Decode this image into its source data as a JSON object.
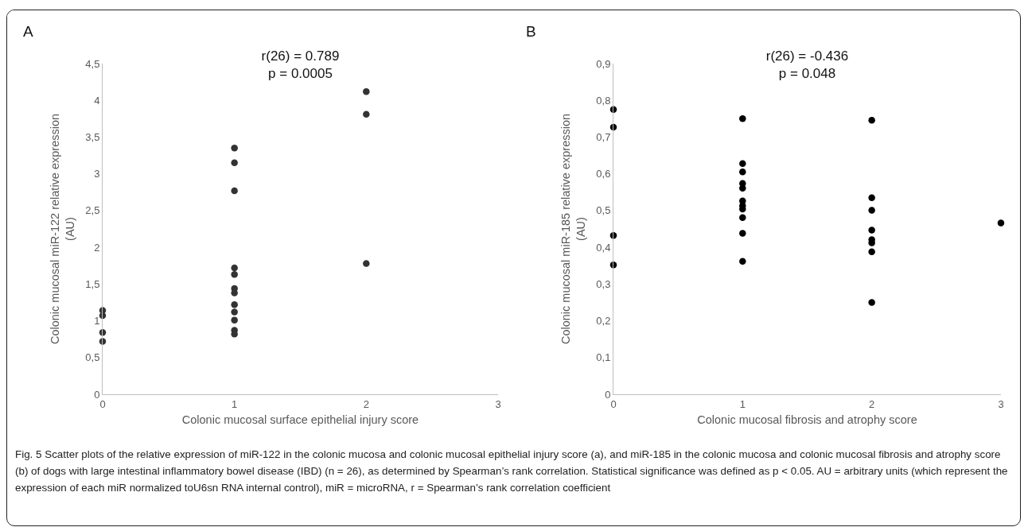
{
  "chart_data": [
    {
      "type": "scatter",
      "title": "r(26) = 0.789",
      "subtitle": "p = 0.0005",
      "xlabel": "Colonic mucosal surface epithelial injury score",
      "ylabel": "Colonic mucosal miR-122 relative expression (AU)",
      "annotations": [
        "A"
      ],
      "x": [
        0,
        0,
        0,
        0,
        1,
        1,
        1,
        1,
        1,
        1,
        1,
        1,
        1,
        1,
        1,
        1,
        2,
        2,
        2
      ],
      "values": [
        1.14,
        1.07,
        0.84,
        0.72,
        3.35,
        3.15,
        2.77,
        1.72,
        1.63,
        1.44,
        1.38,
        1.22,
        1.12,
        1.01,
        0.87,
        0.82,
        4.12,
        3.81,
        1.78
      ],
      "color": "#333333",
      "marker": "circle",
      "grid": false,
      "legend": false,
      "xlim": [
        0,
        3
      ],
      "xticks": [
        0,
        1,
        2,
        3
      ],
      "ylim": [
        0,
        4.5
      ],
      "yticks": [
        0,
        {
          "value": 0.5,
          "label": "0,5"
        },
        1,
        {
          "value": 1.5,
          "label": "1,5"
        },
        2,
        {
          "value": 2.5,
          "label": "2,5"
        },
        3,
        {
          "value": 3.5,
          "label": "3,5"
        },
        4,
        {
          "value": 4.5,
          "label": "4,5"
        }
      ]
    },
    {
      "type": "scatter",
      "title": "r(26) = -0.436",
      "subtitle": "p = 0.048",
      "xlabel": "Colonic mucosal fibrosis and atrophy score",
      "ylabel": "Colonic mucosal miR-185 relative expression (AU)",
      "annotations": [
        "B",
        "Fig. 5 Scatter plots of the relative expression of miR-122 in the colonic mucosa and colonic mucosal epithelial injury score (a), and miR-185 in the colonic mucosa and colonic mucosal fibrosis and atrophy score (b) of dogs with large intestinal inflammatory bowel disease (IBD) (n = 26), as determined by Spearman’s rank correlation. Statistical significance was defined as p < 0.05. AU = arbitrary units (which represent the expression of each miR normalized toU6sn RNA internal control), miR = microRNA, r = Spearman’s rank correlation coefficient"
      ],
      "x": [
        0,
        0,
        0,
        0,
        1,
        1,
        1,
        1,
        1,
        1,
        1,
        1,
        1,
        1,
        1,
        2,
        2,
        2,
        2,
        2,
        2,
        2,
        2,
        3
      ],
      "values": [
        0.775,
        0.727,
        0.432,
        0.352,
        0.75,
        0.628,
        0.605,
        0.574,
        0.561,
        0.526,
        0.513,
        0.504,
        0.481,
        0.438,
        0.362,
        0.746,
        0.535,
        0.501,
        0.447,
        0.421,
        0.412,
        0.388,
        0.25,
        0.466
      ],
      "color": "#000000",
      "marker": "circle",
      "grid": false,
      "legend": false,
      "xlim": [
        0,
        3
      ],
      "xticks": [
        0,
        1,
        2,
        3
      ],
      "ylim": [
        0,
        0.9
      ],
      "yticks": [
        0,
        {
          "value": 0.1,
          "label": "0,1"
        },
        {
          "value": 0.2,
          "label": "0,2"
        },
        {
          "value": 0.3,
          "label": "0,3"
        },
        {
          "value": 0.4,
          "label": "0,4"
        },
        {
          "value": 0.5,
          "label": "0,5"
        },
        {
          "value": 0.6,
          "label": "0,6"
        },
        {
          "value": 0.7,
          "label": "0,7"
        },
        {
          "value": 0.8,
          "label": "0,8"
        },
        {
          "value": 0.9,
          "label": "0,9"
        }
      ]
    }
  ]
}
